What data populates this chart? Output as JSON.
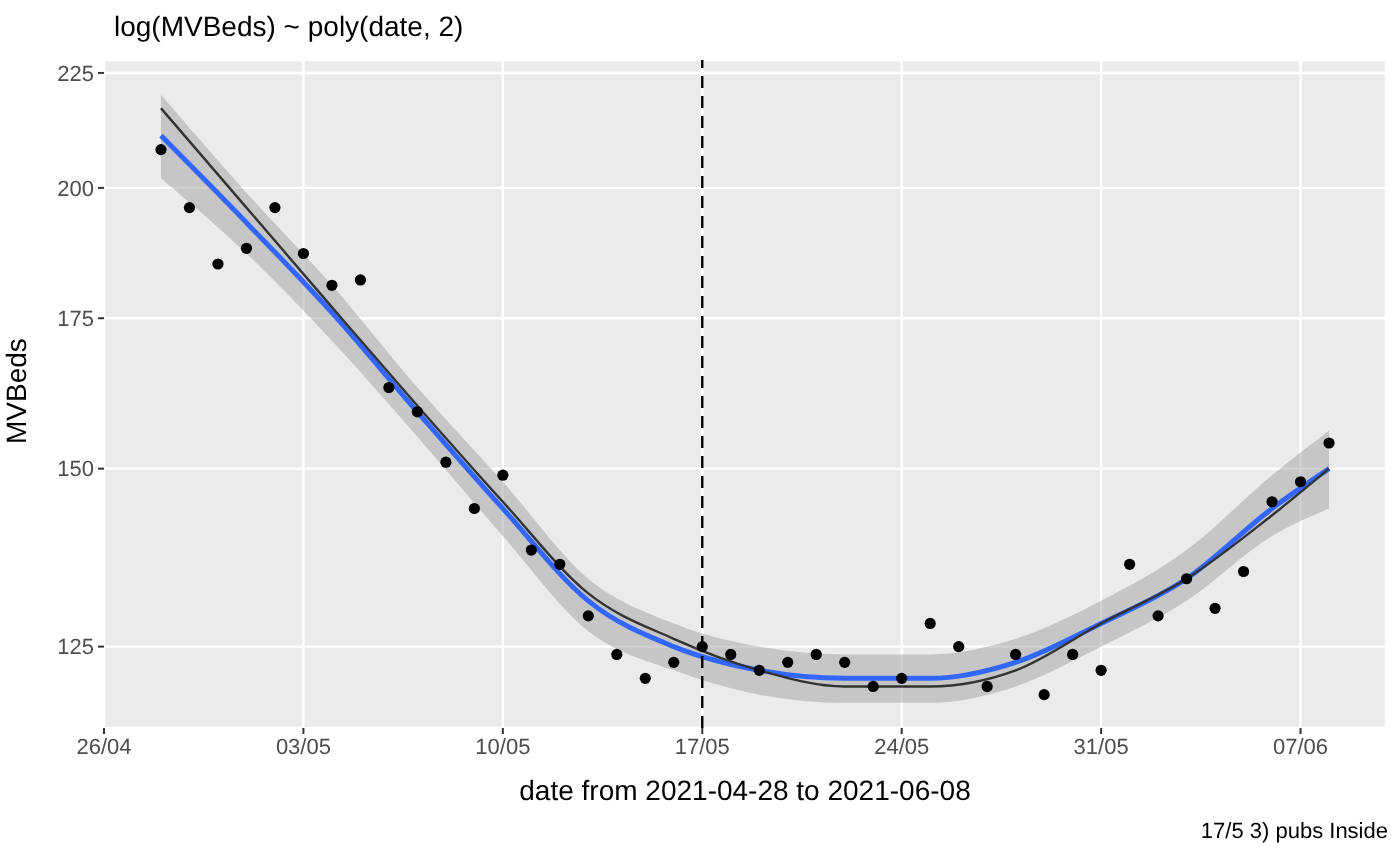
{
  "chart_data": {
    "type": "scatter",
    "title": "log(MVBeds) ~ poly(date, 2)",
    "xlabel": "date from 2021-04-28 to 2021-06-08",
    "ylabel": "MVBeds",
    "annotations": [
      "17/5 3) pubs Inside"
    ],
    "log": "y",
    "grid": true,
    "legend": false,
    "xlim": [
      "2021-04-26",
      "2021-06-10"
    ],
    "xticks": [
      {
        "value": "2021-04-26",
        "label": "26/04"
      },
      {
        "value": "2021-05-03",
        "label": "03/05"
      },
      {
        "value": "2021-05-10",
        "label": "10/05"
      },
      {
        "value": "2021-05-17",
        "label": "17/05"
      },
      {
        "value": "2021-05-24",
        "label": "24/05"
      },
      {
        "value": "2021-05-31",
        "label": "31/05"
      },
      {
        "value": "2021-06-07",
        "label": "07/06"
      }
    ],
    "ylim": [
      115,
      228
    ],
    "yticks": [
      125,
      150,
      175,
      200,
      225
    ],
    "ref_lines": [
      {
        "axis": "x",
        "value": "2021-05-17",
        "color": "#000000",
        "line_style": "dashed"
      }
    ],
    "series": [
      {
        "color": "#000000",
        "marker": "circle",
        "x": [
          "2021-04-28",
          "2021-04-29",
          "2021-04-30",
          "2021-05-01",
          "2021-05-02",
          "2021-05-03",
          "2021-05-04",
          "2021-05-05",
          "2021-05-06",
          "2021-05-07",
          "2021-05-08",
          "2021-05-09",
          "2021-05-10",
          "2021-05-11",
          "2021-05-12",
          "2021-05-13",
          "2021-05-14",
          "2021-05-15",
          "2021-05-16",
          "2021-05-17",
          "2021-05-18",
          "2021-05-19",
          "2021-05-20",
          "2021-05-21",
          "2021-05-22",
          "2021-05-23",
          "2021-05-24",
          "2021-05-25",
          "2021-05-26",
          "2021-05-27",
          "2021-05-28",
          "2021-05-29",
          "2021-05-30",
          "2021-05-31",
          "2021-06-01",
          "2021-06-02",
          "2021-06-03",
          "2021-06-04",
          "2021-06-05",
          "2021-06-06",
          "2021-06-07",
          "2021-06-08"
        ],
        "values": [
          208,
          196,
          185,
          188,
          196,
          187,
          181,
          182,
          163,
          159,
          151,
          144,
          149,
          138,
          136,
          129,
          124,
          121,
          123,
          125,
          124,
          122,
          123,
          124,
          123,
          120,
          121,
          128,
          125,
          120,
          124,
          119,
          124,
          122,
          136,
          129,
          134,
          130,
          135,
          145,
          148,
          154
        ]
      },
      {
        "type": "line",
        "color": "#3366ff",
        "marker": "none",
        "line_style": "solid",
        "x": [
          "2021-04-28",
          "2021-05-01",
          "2021-05-04",
          "2021-05-07",
          "2021-05-10",
          "2021-05-13",
          "2021-05-16",
          "2021-05-19",
          "2021-05-22",
          "2021-05-25",
          "2021-05-28",
          "2021-05-31",
          "2021-06-03",
          "2021-06-06",
          "2021-06-08"
        ],
        "values": [
          211,
          193,
          176,
          159,
          144,
          131,
          125,
          122,
          121,
          121,
          123,
          128,
          134,
          144,
          150
        ],
        "lower": [
          202,
          187,
          171,
          155,
          140,
          127,
          122,
          119,
          118,
          118,
          120,
          125,
          131,
          140,
          144
        ],
        "upper": [
          220,
          199,
          181,
          163,
          148,
          134,
          128,
          125,
          124,
          124,
          126,
          131,
          138,
          149,
          156
        ]
      },
      {
        "type": "line",
        "color": "#333333",
        "marker": "none",
        "line_style": "solid",
        "x": [
          "2021-04-28",
          "2021-05-01",
          "2021-05-04",
          "2021-05-07",
          "2021-05-10",
          "2021-05-13",
          "2021-05-16",
          "2021-05-19",
          "2021-05-22",
          "2021-05-25",
          "2021-05-28",
          "2021-05-31",
          "2021-06-03",
          "2021-06-06",
          "2021-06-08"
        ],
        "values": [
          217,
          196,
          177,
          160,
          145,
          132,
          126,
          122,
          120,
          120,
          122,
          128,
          134,
          143,
          150
        ]
      }
    ]
  }
}
